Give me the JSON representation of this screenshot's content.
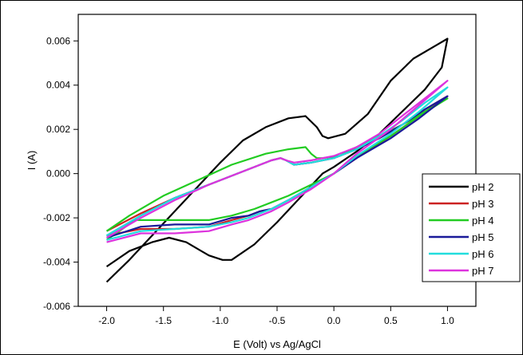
{
  "chart_data": {
    "type": "line",
    "title": "",
    "xlabel": "E (Volt) vs Ag/AgCl",
    "ylabel": "I (A)",
    "xlim": [
      -2.25,
      1.25
    ],
    "ylim": [
      -0.006,
      0.0072
    ],
    "xticks": [
      "-2.0",
      "-1.5",
      "-1.0",
      "-0.5",
      "0.0",
      "0.5",
      "1.0"
    ],
    "yticks": [
      "-0.006",
      "-0.004",
      "-0.002",
      "0.000",
      "0.002",
      "0.004",
      "0.006"
    ],
    "grid": false,
    "legend_position": "right",
    "series": [
      {
        "name": "pH 2",
        "color": "#000000",
        "x": [
          -2.0,
          -1.8,
          -1.6,
          -1.45,
          -1.3,
          -1.1,
          -0.98,
          -0.9,
          -0.7,
          -0.5,
          -0.3,
          -0.1,
          0.0,
          0.2,
          0.4,
          0.6,
          0.8,
          0.95,
          1.0,
          0.9,
          0.7,
          0.5,
          0.3,
          0.1,
          -0.05,
          -0.1,
          -0.15,
          -0.25,
          -0.4,
          -0.6,
          -0.8,
          -1.0,
          -1.2,
          -1.4,
          -1.6,
          -1.8,
          -2.0
        ],
        "y": [
          -0.0042,
          -0.0035,
          -0.0031,
          -0.0029,
          -0.0031,
          -0.0037,
          -0.0039,
          -0.0039,
          -0.0032,
          -0.0022,
          -0.0011,
          0.0,
          0.0003,
          0.001,
          0.0018,
          0.0028,
          0.0038,
          0.0048,
          0.0061,
          0.0058,
          0.0052,
          0.0042,
          0.0027,
          0.0018,
          0.0016,
          0.0017,
          0.0021,
          0.0026,
          0.0025,
          0.0021,
          0.0015,
          0.0005,
          -0.0006,
          -0.0017,
          -0.0028,
          -0.0039,
          -0.0049
        ]
      },
      {
        "name": "pH 3",
        "color": "#cc2222",
        "x": [
          -2.0,
          -1.7,
          -1.4,
          -1.1,
          -0.9,
          -0.75,
          -0.65,
          -0.55,
          -0.4,
          -0.2,
          0.0,
          0.2,
          0.5,
          0.75,
          1.0,
          0.8,
          0.6,
          0.4,
          0.2,
          0.0,
          -0.2,
          -0.35,
          -0.42,
          -0.47,
          -0.55,
          -0.8,
          -1.1,
          -1.4,
          -1.7,
          -2.0
        ],
        "y": [
          -0.0028,
          -0.0025,
          -0.0025,
          -0.0024,
          -0.0021,
          -0.0019,
          -0.0017,
          -0.0016,
          -0.0012,
          -0.0006,
          0.0,
          0.0007,
          0.0017,
          0.0026,
          0.0035,
          0.0029,
          0.0022,
          0.0016,
          0.0011,
          0.0007,
          0.0005,
          0.0004,
          0.0006,
          0.0007,
          0.0006,
          0.0001,
          -0.0005,
          -0.0011,
          -0.0018,
          -0.0026
        ]
      },
      {
        "name": "pH 4",
        "color": "#22cc22",
        "x": [
          -2.0,
          -1.75,
          -1.6,
          -1.4,
          -1.1,
          -0.9,
          -0.7,
          -0.55,
          -0.4,
          -0.2,
          0.0,
          0.2,
          0.5,
          0.75,
          1.0,
          0.8,
          0.6,
          0.4,
          0.2,
          0.05,
          -0.1,
          -0.15,
          -0.2,
          -0.25,
          -0.4,
          -0.6,
          -0.9,
          -1.2,
          -1.5,
          -1.8,
          -2.0
        ],
        "y": [
          -0.003,
          -0.0021,
          -0.0021,
          -0.0021,
          -0.0021,
          -0.0019,
          -0.0016,
          -0.0013,
          -0.001,
          -0.0005,
          0.0,
          0.0008,
          0.0017,
          0.0026,
          0.0034,
          0.0028,
          0.0022,
          0.0017,
          0.0012,
          0.0008,
          0.0007,
          0.0007,
          0.0009,
          0.0012,
          0.0011,
          0.0009,
          0.0004,
          -0.0003,
          -0.001,
          -0.0019,
          -0.0026
        ]
      },
      {
        "name": "pH 5",
        "color": "#1a1a99",
        "x": [
          -2.0,
          -1.7,
          -1.4,
          -1.1,
          -0.9,
          -0.75,
          -0.65,
          -0.55,
          -0.4,
          -0.2,
          0.0,
          0.2,
          0.5,
          0.75,
          1.0,
          0.8,
          0.6,
          0.4,
          0.2,
          0.0,
          -0.2,
          -0.35,
          -0.42,
          -0.47,
          -0.55,
          -0.8,
          -1.1,
          -1.4,
          -1.7,
          -2.0
        ],
        "y": [
          -0.0029,
          -0.0024,
          -0.0023,
          -0.0023,
          -0.002,
          -0.0019,
          -0.0017,
          -0.0016,
          -0.0012,
          -0.0006,
          0.0,
          0.0007,
          0.0016,
          0.0025,
          0.0035,
          0.0029,
          0.0022,
          0.0016,
          0.0011,
          0.0007,
          0.0005,
          0.0004,
          0.0006,
          0.0007,
          0.0006,
          0.0001,
          -0.0005,
          -0.0011,
          -0.0019,
          -0.0028
        ]
      },
      {
        "name": "pH 6",
        "color": "#22dddd",
        "x": [
          -2.0,
          -1.7,
          -1.4,
          -1.1,
          -0.9,
          -0.75,
          -0.65,
          -0.55,
          -0.4,
          -0.2,
          0.0,
          0.2,
          0.5,
          0.75,
          1.0,
          0.8,
          0.6,
          0.4,
          0.2,
          0.0,
          -0.2,
          -0.35,
          -0.42,
          -0.47,
          -0.55,
          -0.8,
          -1.1,
          -1.4,
          -1.7,
          -2.0
        ],
        "y": [
          -0.003,
          -0.0026,
          -0.0025,
          -0.0024,
          -0.0022,
          -0.002,
          -0.0018,
          -0.0016,
          -0.0012,
          -0.0006,
          0.0,
          0.0008,
          0.0018,
          0.0028,
          0.0039,
          0.0032,
          0.0024,
          0.0017,
          0.0011,
          0.0007,
          0.0005,
          0.0004,
          0.0006,
          0.0007,
          0.0006,
          0.0001,
          -0.0005,
          -0.0011,
          -0.0019,
          -0.0028
        ]
      },
      {
        "name": "pH 7",
        "color": "#dd33dd",
        "x": [
          -2.0,
          -1.7,
          -1.4,
          -1.1,
          -0.9,
          -0.75,
          -0.65,
          -0.55,
          -0.4,
          -0.2,
          0.0,
          0.2,
          0.5,
          0.75,
          1.0,
          0.8,
          0.6,
          0.4,
          0.2,
          0.0,
          -0.2,
          -0.35,
          -0.42,
          -0.47,
          -0.55,
          -0.8,
          -1.1,
          -1.4,
          -1.7,
          -2.0
        ],
        "y": [
          -0.0031,
          -0.0027,
          -0.0027,
          -0.0026,
          -0.0023,
          -0.0021,
          -0.0019,
          -0.0017,
          -0.0013,
          -0.0007,
          0.0,
          0.0009,
          0.002,
          0.0031,
          0.0042,
          0.0034,
          0.0026,
          0.0018,
          0.0012,
          0.0008,
          0.0006,
          0.0005,
          0.0006,
          0.0007,
          0.0006,
          0.0001,
          -0.0005,
          -0.0012,
          -0.002,
          -0.0029
        ]
      }
    ]
  }
}
